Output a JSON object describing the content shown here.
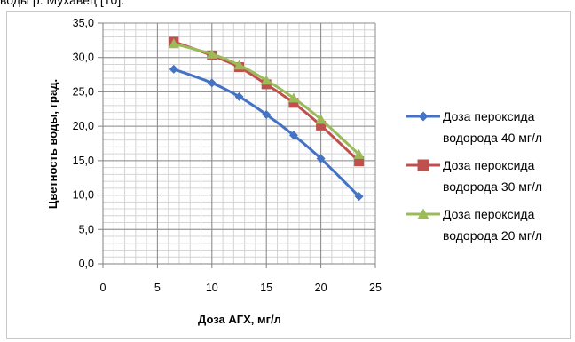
{
  "caption": "воды р. Мухавец [10].",
  "chart_data": {
    "type": "line",
    "title": "",
    "xlabel": "Доза АГХ, мг/л",
    "ylabel": "Цветность воды,  град.",
    "xlim": [
      0,
      25
    ],
    "ylim": [
      0,
      35
    ],
    "x_ticks": [
      "0",
      "5",
      "10",
      "15",
      "20",
      "25"
    ],
    "y_ticks": [
      "0,0",
      "5,0",
      "10,0",
      "15,0",
      "20,0",
      "25,0",
      "30,0",
      "35,0"
    ],
    "grid": true,
    "legend_position": "right",
    "series": [
      {
        "name": "Доза пероксида водорода 40 мг/л",
        "legend_lines": [
          "Доза пероксида",
          "водорода 40 мг/л"
        ],
        "marker": "diamond",
        "color": "#4472c4",
        "x": [
          6.5,
          10,
          12.5,
          15,
          17.5,
          20,
          23.5
        ],
        "y": [
          28.3,
          26.3,
          24.3,
          21.7,
          18.7,
          15.3,
          9.8
        ]
      },
      {
        "name": "Доза пероксида водорода 30 мг/л",
        "legend_lines": [
          "Доза пероксида",
          "водорода 30 мг/л"
        ],
        "marker": "square",
        "color": "#c0504d",
        "x": [
          6.5,
          10,
          12.5,
          15,
          17.5,
          20,
          23.5
        ],
        "y": [
          32.3,
          30.3,
          28.6,
          26.1,
          23.4,
          20.1,
          14.9
        ]
      },
      {
        "name": "Доза пероксида водорода 20 мг/л",
        "legend_lines": [
          "Доза пероксида",
          "водорода 20 мг/л"
        ],
        "marker": "triangle",
        "color": "#9bbb59",
        "x": [
          6.5,
          10,
          12.5,
          15,
          17.5,
          20,
          23.5
        ],
        "y": [
          32.0,
          30.5,
          28.9,
          26.7,
          24.1,
          21.0,
          15.9
        ]
      }
    ]
  }
}
